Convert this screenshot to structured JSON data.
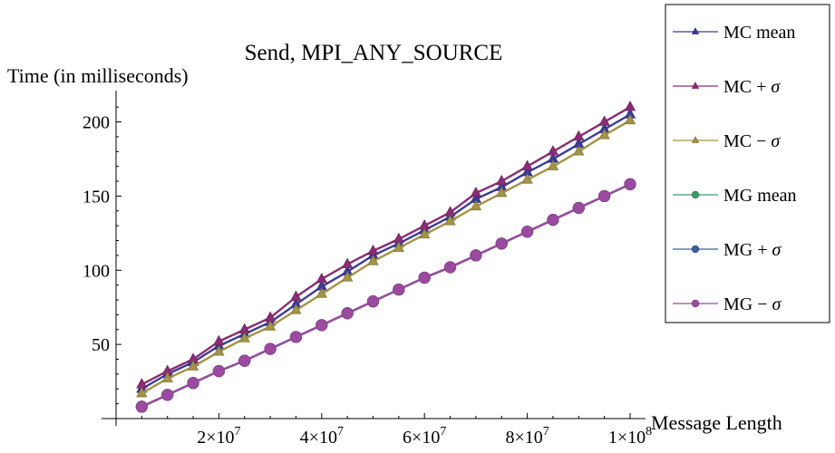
{
  "chart_data": {
    "type": "line",
    "title": "Send, MPI_ANY_SOURCE",
    "xlabel": "Message Length",
    "ylabel": "Time (in milliseconds)",
    "xlim": [
      0,
      100000000
    ],
    "ylim": [
      0,
      215
    ],
    "grid": false,
    "legend_position": "right",
    "x_ticks": [
      {
        "value": 20000000,
        "mant": "2",
        "exp": "7"
      },
      {
        "value": 40000000,
        "mant": "4",
        "exp": "7"
      },
      {
        "value": 60000000,
        "mant": "6",
        "exp": "7"
      },
      {
        "value": 80000000,
        "mant": "8",
        "exp": "7"
      },
      {
        "value": 100000000,
        "mant": "1",
        "exp": "8"
      }
    ],
    "y_ticks": [
      {
        "value": 50,
        "label": "50"
      },
      {
        "value": 100,
        "label": "100"
      },
      {
        "value": 150,
        "label": "150"
      },
      {
        "value": 200,
        "label": "200"
      }
    ],
    "x": [
      5000000,
      10000000,
      15000000,
      20000000,
      25000000,
      30000000,
      35000000,
      40000000,
      45000000,
      50000000,
      55000000,
      60000000,
      65000000,
      70000000,
      75000000,
      80000000,
      85000000,
      90000000,
      95000000,
      100000000
    ],
    "series": [
      {
        "name": "MC mean",
        "legend": "MC mean",
        "marker": "triangle",
        "color": "#3b3b9a",
        "values": [
          20,
          30,
          38,
          49,
          57,
          65,
          77,
          89,
          99,
          110,
          118,
          127,
          136,
          148,
          156,
          166,
          175,
          185,
          195,
          205
        ]
      },
      {
        "name": "MC + σ",
        "legend": "MC + ",
        "sigma": "σ",
        "marker": "triangle",
        "color": "#8a2d74",
        "values": [
          23,
          32,
          40,
          52,
          60,
          68,
          82,
          94,
          104,
          113,
          121,
          130,
          139,
          152,
          160,
          170,
          180,
          190,
          200,
          210
        ]
      },
      {
        "name": "MC − σ",
        "legend": "MC − ",
        "sigma": "σ",
        "marker": "triangle",
        "color": "#a39447",
        "values": [
          17,
          27,
          35,
          45,
          54,
          62,
          73,
          84,
          95,
          106,
          115,
          124,
          133,
          143,
          152,
          161,
          170,
          180,
          191,
          201
        ]
      },
      {
        "name": "MG mean",
        "legend": "MG mean",
        "marker": "circle",
        "color": "#3c9b67",
        "values": [
          8,
          16,
          24,
          32,
          39,
          47,
          55,
          63,
          71,
          79,
          87,
          95,
          102,
          110,
          118,
          126,
          134,
          142,
          150,
          158
        ]
      },
      {
        "name": "MG + σ",
        "legend": "MG + ",
        "sigma": "σ",
        "marker": "circle",
        "color": "#3c5ea0",
        "values": [
          8,
          16,
          24,
          32,
          39,
          47,
          55,
          63,
          71,
          79,
          87,
          95,
          102,
          110,
          118,
          126,
          134,
          142,
          150,
          158
        ]
      },
      {
        "name": "MG − σ",
        "legend": "MG − ",
        "sigma": "σ",
        "marker": "circle",
        "color": "#9c4aa0",
        "values": [
          8,
          16,
          24,
          32,
          39,
          47,
          55,
          63,
          71,
          79,
          87,
          95,
          102,
          110,
          118,
          126,
          134,
          142,
          150,
          158
        ]
      }
    ]
  }
}
